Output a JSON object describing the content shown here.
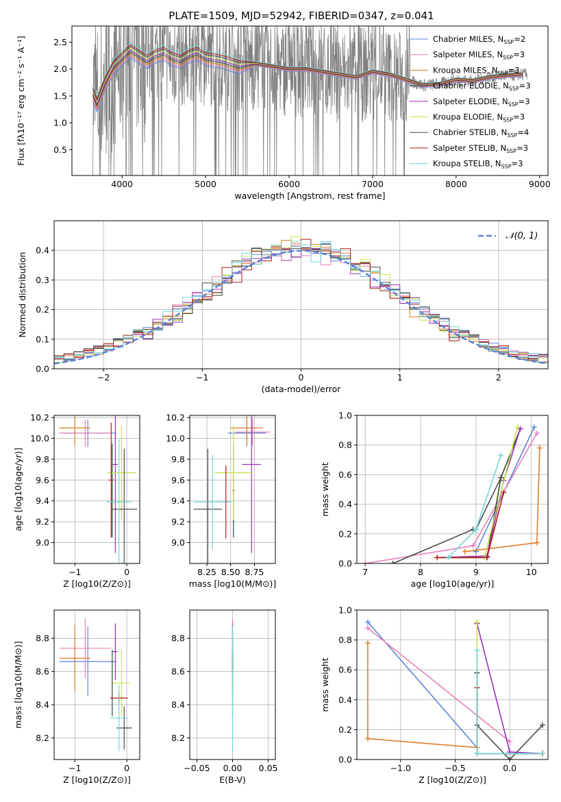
{
  "figure": {
    "title": "PLATE=1509, MJD=52942, FIBERID=0347, z=0.041"
  },
  "models": [
    {
      "name": "Chabrier MILES, N",
      "nssp": "2",
      "color": "#5b84d8"
    },
    {
      "name": "Salpeter MILES, N",
      "nssp": "3",
      "color": "#e67fb9"
    },
    {
      "name": "Kroupa MILES, N",
      "nssp": "3",
      "color": "#e07b24"
    },
    {
      "name": "Chabrier ELODIE, N",
      "nssp": "3",
      "color": "#2e4a2e"
    },
    {
      "name": "Salpeter ELODIE, N",
      "nssp": "3",
      "color": "#9b2fb8"
    },
    {
      "name": "Kroupa ELODIE, N",
      "nssp": "3",
      "color": "#c8e04a"
    },
    {
      "name": "Chabrier STELIB, N",
      "nssp": "4",
      "color": "#4a4a4a"
    },
    {
      "name": "Salpeter STELIB, N",
      "nssp": "3",
      "color": "#b01818"
    },
    {
      "name": "Kroupa STELIB, N",
      "nssp": "3",
      "color": "#6fd6d6"
    }
  ],
  "chart_data": [
    {
      "id": "spectrum",
      "type": "line",
      "xlabel": "wavelength [Angstrom, rest frame]",
      "ylabel": "Flux [f_λ 10^-17 erg cm^-2 s^-1 A^-1]",
      "xlim": [
        3400,
        9100
      ],
      "ylim": [
        0.02,
        2.8
      ],
      "xticks": [
        4000,
        5000,
        6000,
        7000,
        8000,
        9000
      ],
      "yticks": [
        0.5,
        1.0,
        1.5,
        2.0,
        2.5
      ],
      "data_color": "#808080",
      "model_x": [
        3650,
        3700,
        3800,
        3900,
        4000,
        4100,
        4200,
        4300,
        4400,
        4500,
        4600,
        4700,
        4800,
        4900,
        5000,
        5200,
        5400,
        5600,
        5800,
        6000,
        6200,
        6400,
        6600,
        6800,
        7000,
        7200,
        7400,
        7600,
        7800,
        8000,
        8200,
        8400,
        8600,
        8800
      ],
      "model_y": [
        1.55,
        1.35,
        1.75,
        2.05,
        2.2,
        2.35,
        2.25,
        2.15,
        2.25,
        2.3,
        2.2,
        2.15,
        2.25,
        2.3,
        2.2,
        2.15,
        2.05,
        2.1,
        2.05,
        2.0,
        2.0,
        1.95,
        1.9,
        1.85,
        1.95,
        1.9,
        1.8,
        1.7,
        1.72,
        1.8,
        1.78,
        1.85,
        1.88,
        1.9
      ]
    },
    {
      "id": "residuals",
      "type": "histogram",
      "xlabel": "(data-model)/error",
      "ylabel": "Normed distribution",
      "xlim": [
        -2.5,
        2.5
      ],
      "ylim": [
        0,
        0.5
      ],
      "xticks": [
        -2,
        -1,
        0,
        1,
        2
      ],
      "yticks": [
        0.0,
        0.1,
        0.2,
        0.3,
        0.4
      ],
      "bin_width": 0.1,
      "legend": "𝒩(0, 1)",
      "gaussian": {
        "mean": 0,
        "sigma": 1
      }
    },
    {
      "id": "age_vs_Z",
      "type": "errorbar",
      "xlabel": "Z [log10(Z/Z⊙)]",
      "ylabel": "age [log10(age/yr)]",
      "xlim": [
        -1.4,
        0.25
      ],
      "ylim": [
        8.8,
        10.22
      ],
      "xticks": [
        -1,
        0
      ],
      "yticks": [
        9.0,
        9.2,
        9.4,
        9.6,
        9.8,
        10.0,
        10.2
      ],
      "points": [
        {
          "x": -0.75,
          "xerr": 0.55,
          "y": 10.05,
          "yerr": 0.13
        },
        {
          "x": -0.8,
          "xerr": 0.5,
          "y": 10.05,
          "yerr": 0.13
        },
        {
          "x": -1.0,
          "xerr": 0.3,
          "y": 10.1,
          "yerr": 0.17
        },
        {
          "x": -0.28,
          "xerr": 0.01,
          "y": 9.5,
          "yerr": 0.45
        },
        {
          "x": -0.22,
          "xerr": 0.05,
          "y": 9.75,
          "yerr": 0.85
        },
        {
          "x": -0.1,
          "xerr": 0.28,
          "y": 9.67,
          "yerr": 0.45
        },
        {
          "x": -0.05,
          "xerr": 0.25,
          "y": 9.32,
          "yerr": 0.58
        },
        {
          "x": -0.3,
          "xerr": 0.05,
          "y": 9.6,
          "yerr": 0.55
        },
        {
          "x": -0.15,
          "xerr": 0.25,
          "y": 9.39,
          "yerr": 0.6
        }
      ]
    },
    {
      "id": "age_vs_mass",
      "type": "errorbar",
      "xlabel": "mass [log10(M/M⊙)]",
      "ylabel": "",
      "xlim": [
        8.07,
        8.97
      ],
      "ylim": [
        8.8,
        10.22
      ],
      "xticks": [
        8.25,
        8.5,
        8.75
      ],
      "yticks": [
        9.0,
        9.2,
        9.4,
        9.6,
        9.8,
        10.0,
        10.2
      ],
      "points": [
        {
          "x": 8.67,
          "xerr": 0.2,
          "y": 10.05,
          "yerr": 0.13
        },
        {
          "x": 8.73,
          "xerr": 0.18,
          "y": 10.06,
          "yerr": 0.13
        },
        {
          "x": 8.67,
          "xerr": 0.17,
          "y": 10.1,
          "yerr": 0.17
        },
        {
          "x": 8.53,
          "xerr": 0.01,
          "y": 9.5,
          "yerr": 0.45
        },
        {
          "x": 8.72,
          "xerr": 0.1,
          "y": 9.75,
          "yerr": 0.85
        },
        {
          "x": 8.53,
          "xerr": 0.2,
          "y": 9.67,
          "yerr": 0.45
        },
        {
          "x": 8.26,
          "xerr": 0.15,
          "y": 9.32,
          "yerr": 0.58
        },
        {
          "x": 8.45,
          "xerr": 0.03,
          "y": 9.39,
          "yerr": 0.35
        },
        {
          "x": 8.31,
          "xerr": 0.2,
          "y": 9.39,
          "yerr": 0.45
        }
      ]
    },
    {
      "id": "weight_vs_age",
      "type": "line",
      "xlabel": "age [log10(age/yr)]",
      "ylabel": "mass weight",
      "xlim": [
        6.85,
        10.3
      ],
      "ylim": [
        0,
        1
      ],
      "xticks": [
        7,
        8,
        9,
        10
      ],
      "yticks": [
        0.0,
        0.2,
        0.4,
        0.6,
        0.8,
        1.0
      ],
      "series": [
        {
          "x": [
            9.0,
            10.05
          ],
          "y": [
            0.08,
            0.92
          ]
        },
        {
          "x": [
            7.0,
            8.95,
            10.1
          ],
          "y": [
            0.0,
            0.12,
            0.88
          ]
        },
        {
          "x": [
            8.8,
            10.1,
            10.15
          ],
          "y": [
            0.08,
            0.14,
            0.78
          ]
        },
        {
          "x": [
            8.3,
            9.2,
            9.45,
            9.8
          ],
          "y": [
            0.04,
            0.04,
            0.58,
            0.91
          ]
        },
        {
          "x": [
            8.3,
            9.2,
            9.5,
            9.8
          ],
          "y": [
            0.04,
            0.05,
            0.56,
            0.91
          ]
        },
        {
          "x": [
            8.3,
            9.15,
            9.75
          ],
          "y": [
            0.04,
            0.04,
            0.92
          ]
        },
        {
          "x": [
            7.5,
            8.95,
            9.0,
            9.45
          ],
          "y": [
            0.0,
            0.23,
            0.23,
            0.58
          ]
        },
        {
          "x": [
            8.3,
            9.2,
            9.5
          ],
          "y": [
            0.04,
            0.04,
            0.48
          ]
        },
        {
          "x": [
            8.5,
            9.0,
            9.45
          ],
          "y": [
            0.04,
            0.23,
            0.73
          ]
        }
      ]
    },
    {
      "id": "mass_vs_Z",
      "type": "errorbar",
      "xlabel": "Z [log10(Z/Z⊙)]",
      "ylabel": "mass [log10(M/M⊙)]",
      "xlim": [
        -1.4,
        0.25
      ],
      "ylim": [
        8.07,
        8.97
      ],
      "xticks": [
        -1,
        0
      ],
      "yticks": [
        8.2,
        8.4,
        8.6,
        8.8
      ],
      "points": [
        {
          "x": -0.75,
          "xerr": 0.55,
          "y": 8.66,
          "yerr": 0.21
        },
        {
          "x": -0.8,
          "xerr": 0.5,
          "y": 8.74,
          "yerr": 0.18
        },
        {
          "x": -1.0,
          "xerr": 0.3,
          "y": 8.68,
          "yerr": 0.2
        },
        {
          "x": -0.28,
          "xerr": 0.01,
          "y": 8.53,
          "yerr": 0.2
        },
        {
          "x": -0.22,
          "xerr": 0.05,
          "y": 8.72,
          "yerr": 0.17
        },
        {
          "x": -0.1,
          "xerr": 0.17,
          "y": 8.53,
          "yerr": 0.2
        },
        {
          "x": -0.05,
          "xerr": 0.15,
          "y": 8.26,
          "yerr": 0.13
        },
        {
          "x": -0.15,
          "xerr": 0.17,
          "y": 8.44,
          "yerr": 0.03
        },
        {
          "x": -0.15,
          "xerr": 0.17,
          "y": 8.32,
          "yerr": 0.2
        }
      ]
    },
    {
      "id": "mass_vs_ebv",
      "type": "errorbar",
      "xlabel": "E(B-V)",
      "ylabel": "",
      "xlim": [
        -0.06,
        0.06
      ],
      "ylim": [
        8.07,
        8.97
      ],
      "xticks": [
        -0.05,
        0.0,
        0.05
      ],
      "yticks": [
        8.2,
        8.4,
        8.6,
        8.8
      ],
      "points": [
        {
          "x": 0.0,
          "xerr": 0.0,
          "y": 8.66,
          "yerr": 0.21
        },
        {
          "x": 0.0,
          "xerr": 0.0,
          "y": 8.74,
          "yerr": 0.18
        },
        {
          "x": 0.0,
          "xerr": 0.0,
          "y": 8.68,
          "yerr": 0.2
        },
        {
          "x": 0.0,
          "xerr": 0.0,
          "y": 8.53,
          "yerr": 0.2
        },
        {
          "x": 0.0,
          "xerr": 0.0,
          "y": 8.72,
          "yerr": 0.17
        },
        {
          "x": 0.0,
          "xerr": 0.0,
          "y": 8.53,
          "yerr": 0.2
        },
        {
          "x": 0.0,
          "xerr": 0.0,
          "y": 8.66,
          "yerr": 0.05
        },
        {
          "x": 0.0,
          "xerr": 0.0,
          "y": 8.66,
          "yerr": 0.05
        },
        {
          "x": 0.0,
          "xerr": 0.0,
          "y": 8.5,
          "yerr": 0.38
        }
      ]
    },
    {
      "id": "weight_vs_Z",
      "type": "line",
      "xlabel": "Z [log10(Z/Z⊙)]",
      "ylabel": "mass weight",
      "xlim": [
        -1.4,
        0.35
      ],
      "ylim": [
        0,
        1
      ],
      "xticks": [
        -1.0,
        -0.5,
        0.0
      ],
      "yticks": [
        0.0,
        0.2,
        0.4,
        0.6,
        0.8,
        1.0
      ],
      "series": [
        {
          "x": [
            -1.3,
            -0.3
          ],
          "y": [
            0.92,
            0.08
          ]
        },
        {
          "x": [
            -1.3,
            0.0
          ],
          "y": [
            0.88,
            0.12
          ]
        },
        {
          "x": [
            -1.3,
            -1.3,
            -0.3
          ],
          "y": [
            0.78,
            0.14,
            0.08
          ]
        },
        {
          "x": [
            -0.3,
            -0.3,
            0.3
          ],
          "y": [
            0.58,
            0.04,
            0.04
          ]
        },
        {
          "x": [
            -0.3,
            0.0,
            0.3,
            0.3
          ],
          "y": [
            0.91,
            0.05,
            0.04,
            0.04
          ]
        },
        {
          "x": [
            -0.3,
            -0.3,
            0.3
          ],
          "y": [
            0.92,
            0.04,
            0.04
          ]
        },
        {
          "x": [
            -0.3,
            -0.3,
            0.0,
            0.3
          ],
          "y": [
            0.58,
            0.23,
            0.0,
            0.23
          ]
        },
        {
          "x": [
            -0.3,
            -0.3,
            0.3
          ],
          "y": [
            0.48,
            0.04,
            0.04
          ]
        },
        {
          "x": [
            -0.3,
            -0.3,
            0.3
          ],
          "y": [
            0.73,
            0.04,
            0.04
          ]
        }
      ]
    }
  ]
}
